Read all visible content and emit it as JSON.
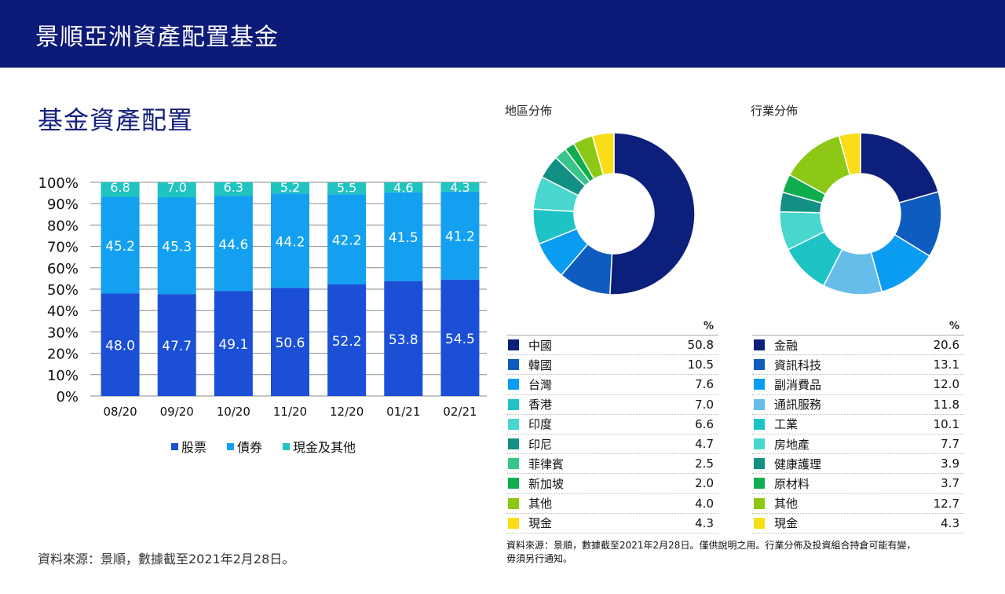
{
  "header": {
    "title": "景順亞洲資產配置基金"
  },
  "section": {
    "title": "基金資產配置"
  },
  "colors": {
    "banner": "#0c1a78",
    "stocks": "#1a4fd6",
    "bonds": "#14a0f0",
    "cash": "#1fc4c0"
  },
  "chart_data": [
    {
      "type": "bar",
      "stacked": true,
      "categories": [
        "08/20",
        "09/20",
        "10/20",
        "11/20",
        "12/20",
        "01/21",
        "02/21"
      ],
      "series": [
        {
          "name": "股票",
          "color": "#1a4fd6",
          "values": [
            48.0,
            47.7,
            49.1,
            50.6,
            52.2,
            53.8,
            54.5
          ]
        },
        {
          "name": "債券",
          "color": "#14a0f0",
          "values": [
            45.2,
            45.3,
            44.6,
            44.2,
            42.2,
            41.5,
            41.2
          ]
        },
        {
          "name": "現金及其他",
          "color": "#1fc4c0",
          "values": [
            6.8,
            7.0,
            6.3,
            5.2,
            5.5,
            4.6,
            4.3
          ]
        }
      ],
      "yticks": [
        "100%",
        "90%",
        "80%",
        "70%",
        "60%",
        "50%",
        "40%",
        "30%",
        "20%",
        "10%",
        "0%"
      ],
      "ylim": [
        0,
        100
      ],
      "legend": "bottom"
    },
    {
      "type": "pie",
      "title": "地區分佈",
      "unit": "%",
      "labels": [
        "中國",
        "韓國",
        "台灣",
        "香港",
        "印度",
        "印尼",
        "菲律賓",
        "新加坡",
        "其他",
        "現金"
      ],
      "values": [
        50.8,
        10.5,
        7.6,
        7.0,
        6.6,
        4.7,
        2.5,
        2.0,
        4.0,
        4.3
      ],
      "colors": [
        "#0c1f7a",
        "#0f5cc0",
        "#0a9cf0",
        "#1ec3c5",
        "#48d6ce",
        "#139083",
        "#39c48a",
        "#0fad4e",
        "#8dc816",
        "#f8dd18"
      ]
    },
    {
      "type": "pie",
      "title": "行業分佈",
      "unit": "%",
      "labels": [
        "金融",
        "資訊科技",
        "副消費品",
        "通訊服務",
        "工業",
        "房地產",
        "健康護理",
        "原材料",
        "其他",
        "現金"
      ],
      "values": [
        20.6,
        13.1,
        12.0,
        11.8,
        10.1,
        7.7,
        3.9,
        3.7,
        12.7,
        4.3
      ],
      "colors": [
        "#0c1f7a",
        "#0f5cc0",
        "#0a9cf0",
        "#66bdea",
        "#1ec3c5",
        "#48d6ce",
        "#139083",
        "#0fad4e",
        "#8dc816",
        "#f8dd18"
      ]
    }
  ],
  "footer": {
    "source_left": "資料來源：景順，數據截至2021年2月28日。",
    "source_right_line1": "資料來源：景順，數據截至2021年2月28日。僅供說明之用。行業分佈及投資組合持倉可能有變，",
    "source_right_line2": "毋須另行通知。"
  }
}
